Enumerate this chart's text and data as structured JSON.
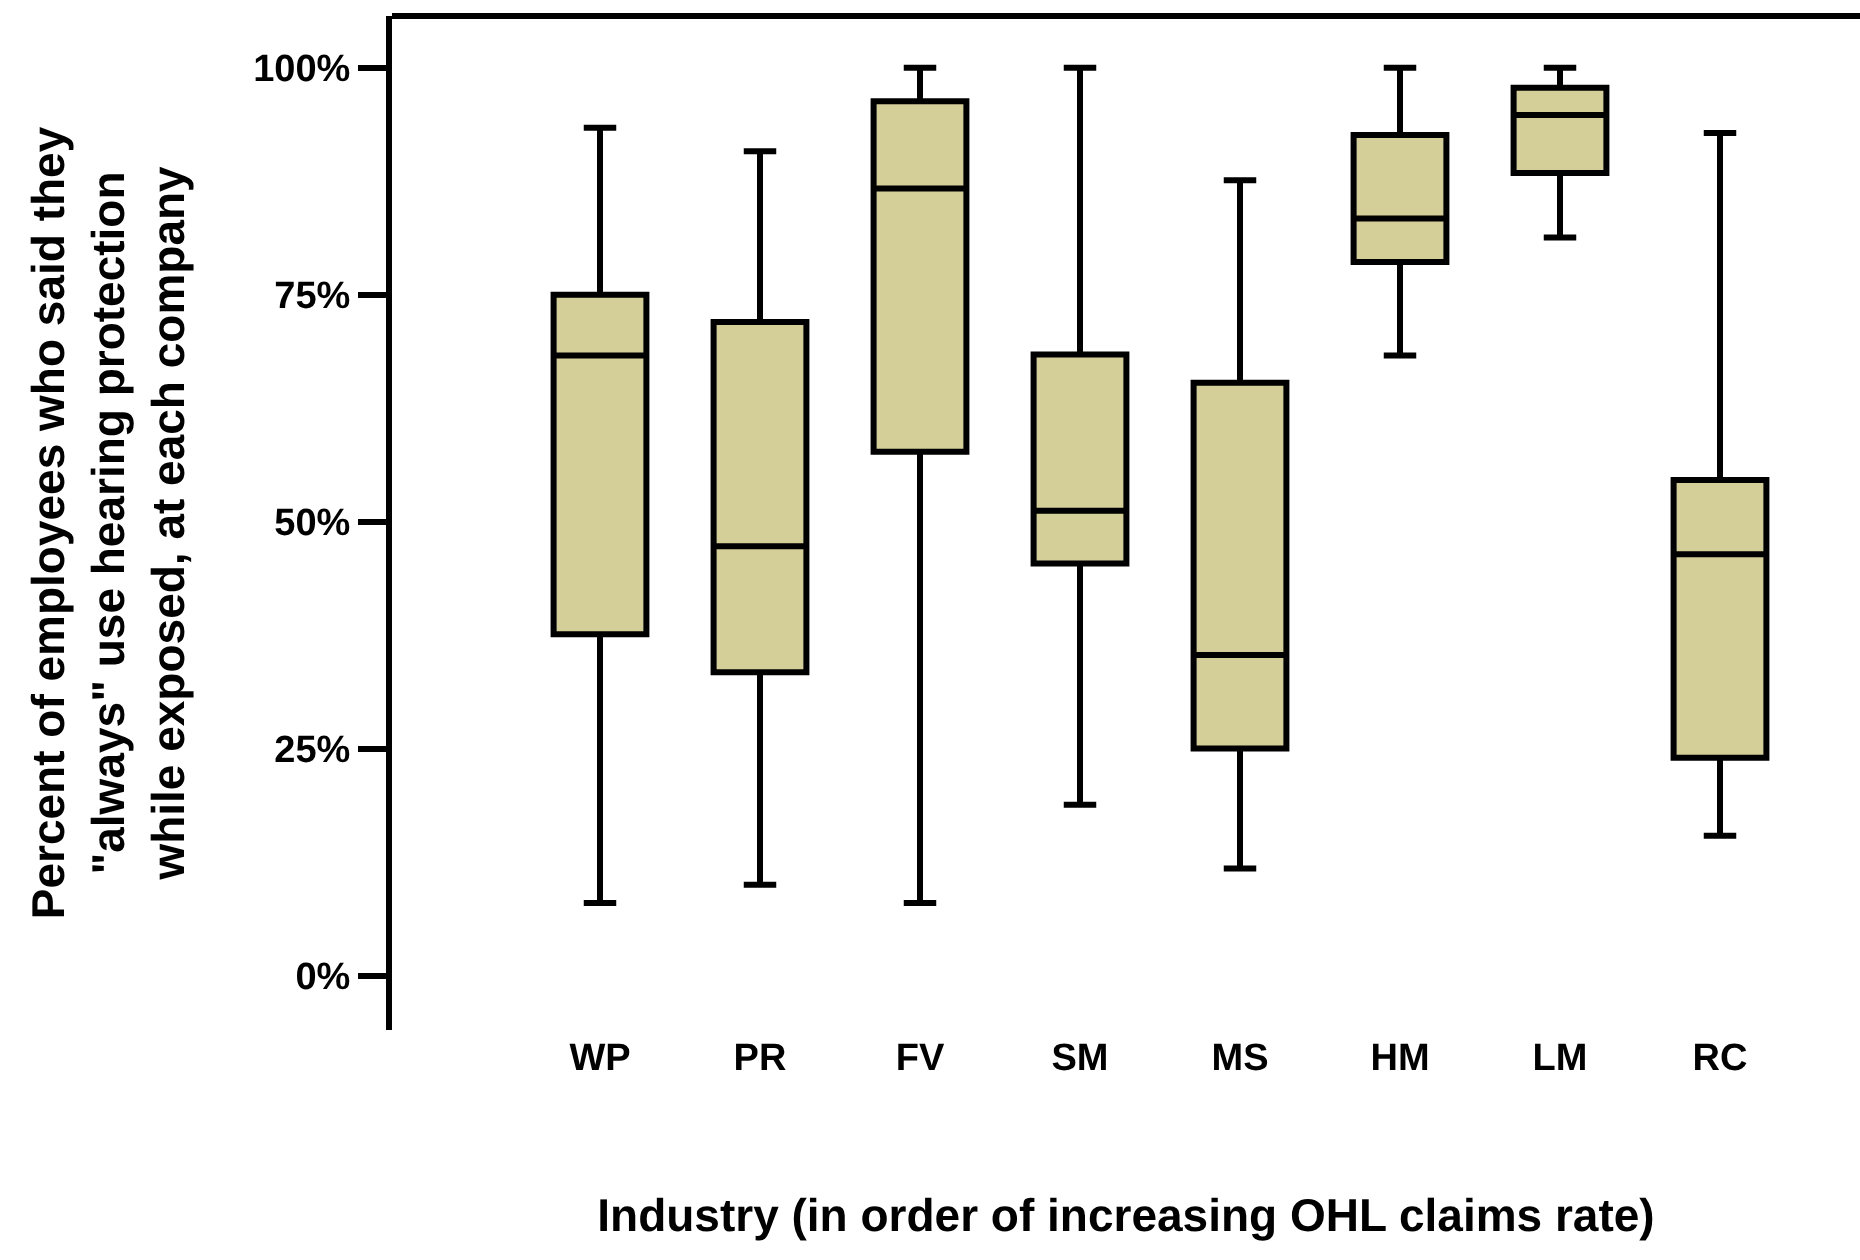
{
  "chart_data": {
    "type": "box",
    "xlabel": "Industry (in order of increasing OHL claims rate)",
    "ylabel": "Percent of employees who said they\n\"always\" use hearing protection\nwhile exposed, at each company",
    "categories": [
      "WP",
      "PR",
      "FV",
      "SM",
      "MS",
      "HM",
      "LM",
      "RC"
    ],
    "color": "#d4ce99",
    "boxes": [
      {
        "low": 8,
        "q1": 37.6,
        "median": 68.3,
        "q3": 75,
        "high": 93.4
      },
      {
        "low": 10,
        "q1": 33.4,
        "median": 47.3,
        "q3": 72,
        "high": 90.8
      },
      {
        "low": 8,
        "q1": 57.7,
        "median": 86.7,
        "q3": 96.3,
        "high": 100
      },
      {
        "low": 18.8,
        "q1": 45.4,
        "median": 51.2,
        "q3": 68.4,
        "high": 100
      },
      {
        "low": 11.8,
        "q1": 25,
        "median": 35.3,
        "q3": 65.3,
        "high": 87.6
      },
      {
        "low": 68.3,
        "q1": 78.6,
        "median": 83.4,
        "q3": 92.6,
        "high": 100
      },
      {
        "low": 81.3,
        "q1": 88.4,
        "median": 94.8,
        "q3": 97.8,
        "high": 100
      },
      {
        "low": 15.4,
        "q1": 24,
        "median": 46.4,
        "q3": 54.6,
        "high": 92.8
      }
    ],
    "ylim": [
      -6,
      105.7
    ],
    "yticks": [
      {
        "value": 0,
        "label": "0%"
      },
      {
        "value": 25,
        "label": "25%"
      },
      {
        "value": 50,
        "label": "50%"
      },
      {
        "value": 75,
        "label": "75%"
      },
      {
        "value": 100,
        "label": "100%"
      }
    ]
  }
}
